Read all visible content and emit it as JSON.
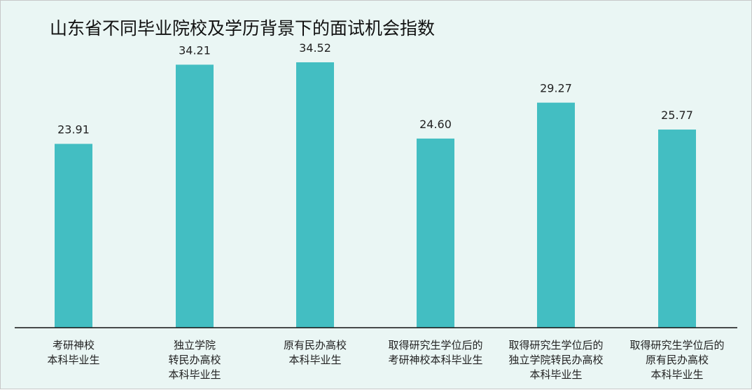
{
  "chart_data": {
    "type": "bar",
    "title": "山东省不同毕业院校及学历背景下的面试机会指数",
    "xlabel": "",
    "ylabel": "",
    "ylim": [
      0,
      40
    ],
    "grid": false,
    "legend": "none",
    "bar_color": "#43bec2",
    "categories": [
      [
        "考研神校",
        "本科毕业生"
      ],
      [
        "独立学院",
        "转民办高校",
        "本科毕业生"
      ],
      [
        "原有民办高校",
        "本科毕业生"
      ],
      [
        "取得研究生学位后的",
        "考研神校本科毕业生"
      ],
      [
        "取得研究生学位后的",
        "独立学院转民办高校",
        "本科毕业生"
      ],
      [
        "取得研究生学位后的",
        "原有民办高校",
        "本科毕业生"
      ]
    ],
    "values": [
      23.91,
      34.21,
      34.52,
      24.6,
      29.27,
      25.77
    ],
    "value_labels": [
      "23.91",
      "34.21",
      "34.52",
      "24.60",
      "29.27",
      "25.77"
    ]
  }
}
